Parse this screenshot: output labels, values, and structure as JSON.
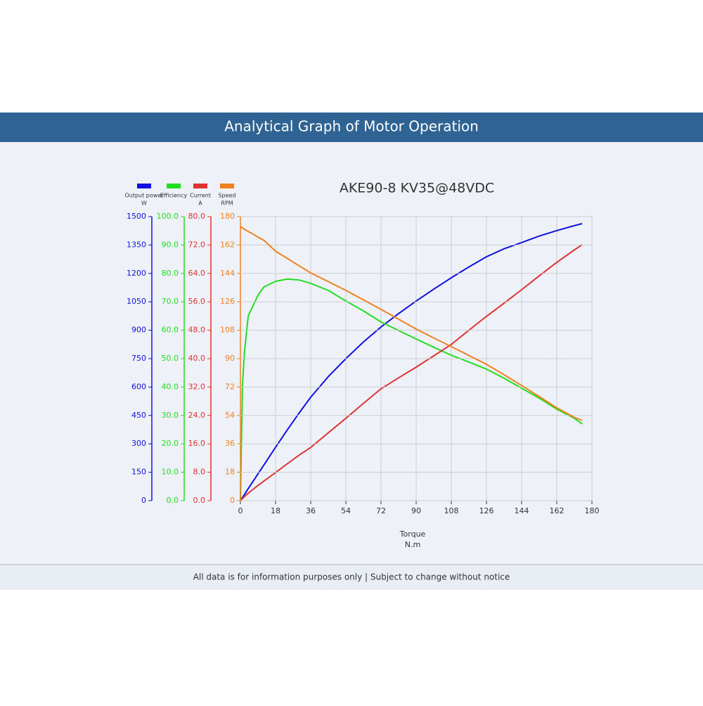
{
  "header": {
    "title": "Analytical Graph of Motor Operation"
  },
  "footer": {
    "note": "All data is for information purposes only | Subject to change without notice"
  },
  "chart_data": {
    "type": "line",
    "title": "AKE90-8 KV35@48VDC",
    "x_label": "Torque",
    "x_unit": "N.m",
    "x": [
      0,
      1,
      2,
      4,
      6,
      9,
      12,
      18,
      24,
      30,
      36,
      45,
      54,
      63,
      72,
      81,
      90,
      99,
      108,
      117,
      126,
      135,
      144,
      153,
      162,
      171,
      175
    ],
    "xlim": [
      0,
      180
    ],
    "xticks": [
      0,
      18,
      36,
      54,
      72,
      90,
      108,
      126,
      144,
      162,
      180
    ],
    "grid": true,
    "series": [
      {
        "name": "Output power",
        "unit": "W",
        "color": "#1010e0",
        "values": [
          0,
          16,
          32,
          64,
          95,
          142,
          188,
          282,
          374,
          462,
          546,
          655,
          750,
          838,
          917,
          988,
          1054,
          1117,
          1177,
          1234,
          1288,
          1330,
          1363,
          1397,
          1426,
          1452,
          1463
        ],
        "ylim": [
          0,
          1500
        ],
        "yticks": [
          0,
          150,
          300,
          450,
          600,
          750,
          900,
          1050,
          1200,
          1350,
          1500
        ]
      },
      {
        "name": "Efficiency",
        "color": "#22dd22",
        "values": [
          0,
          40,
          52,
          65,
          68,
          72.3,
          75.2,
          77.2,
          78,
          77.7,
          76.5,
          74,
          70.3,
          66.8,
          62.9,
          59.9,
          56.9,
          54,
          51.2,
          48.8,
          46.3,
          43.1,
          39.6,
          36.1,
          32.2,
          29,
          27
        ],
        "ylim": [
          0,
          100
        ],
        "yticks": [
          {
            "value": 0,
            "label": "0.0"
          },
          {
            "value": 10,
            "label": "10.0"
          },
          {
            "value": 20,
            "label": "20.0"
          },
          {
            "value": 30,
            "label": "30.0"
          },
          {
            "value": 40,
            "label": "40.0"
          },
          {
            "value": 50,
            "label": "50.0"
          },
          {
            "value": 60,
            "label": "60.0"
          },
          {
            "value": 70,
            "label": "70.0"
          },
          {
            "value": 80,
            "label": "80.0"
          },
          {
            "value": 90,
            "label": "90.0"
          },
          {
            "value": 100,
            "label": "100.0"
          }
        ]
      },
      {
        "name": "Current",
        "unit": "A",
        "color": "#dd3333",
        "values": [
          0,
          0.6,
          1.1,
          2.1,
          3,
          4.3,
          5.5,
          7.9,
          10.4,
          12.8,
          15,
          19.1,
          23.2,
          27.4,
          31.5,
          34.6,
          37.6,
          40.8,
          44,
          48,
          51.9,
          55.6,
          59.4,
          63.3,
          67.1,
          70.6,
          72.1
        ],
        "ylim": [
          0,
          80
        ],
        "yticks": [
          {
            "value": 0,
            "label": "0.0"
          },
          {
            "value": 8,
            "label": "8.0"
          },
          {
            "value": 16,
            "label": "16.0"
          },
          {
            "value": 24,
            "label": "24.0"
          },
          {
            "value": 32,
            "label": "32.0"
          },
          {
            "value": 40,
            "label": "40.0"
          },
          {
            "value": 48,
            "label": "48.0"
          },
          {
            "value": 56,
            "label": "56.0"
          },
          {
            "value": 64,
            "label": "64.0"
          },
          {
            "value": 72,
            "label": "72.0"
          },
          {
            "value": 80,
            "label": "80.0"
          }
        ]
      },
      {
        "name": "Speed",
        "unit": "RPM",
        "color": "#f08020",
        "values": [
          173.7,
          172.9,
          172,
          170.6,
          169.2,
          167,
          165,
          158.1,
          153.5,
          148.9,
          144.3,
          138.8,
          133.2,
          127.2,
          121.2,
          115,
          108.7,
          103.1,
          97.6,
          92,
          86.4,
          79.8,
          73,
          66,
          58.8,
          52.8,
          50.8
        ],
        "ylim": [
          0,
          180
        ],
        "yticks": [
          0,
          18,
          36,
          54,
          72,
          90,
          108,
          126,
          144,
          162,
          180
        ]
      }
    ]
  }
}
